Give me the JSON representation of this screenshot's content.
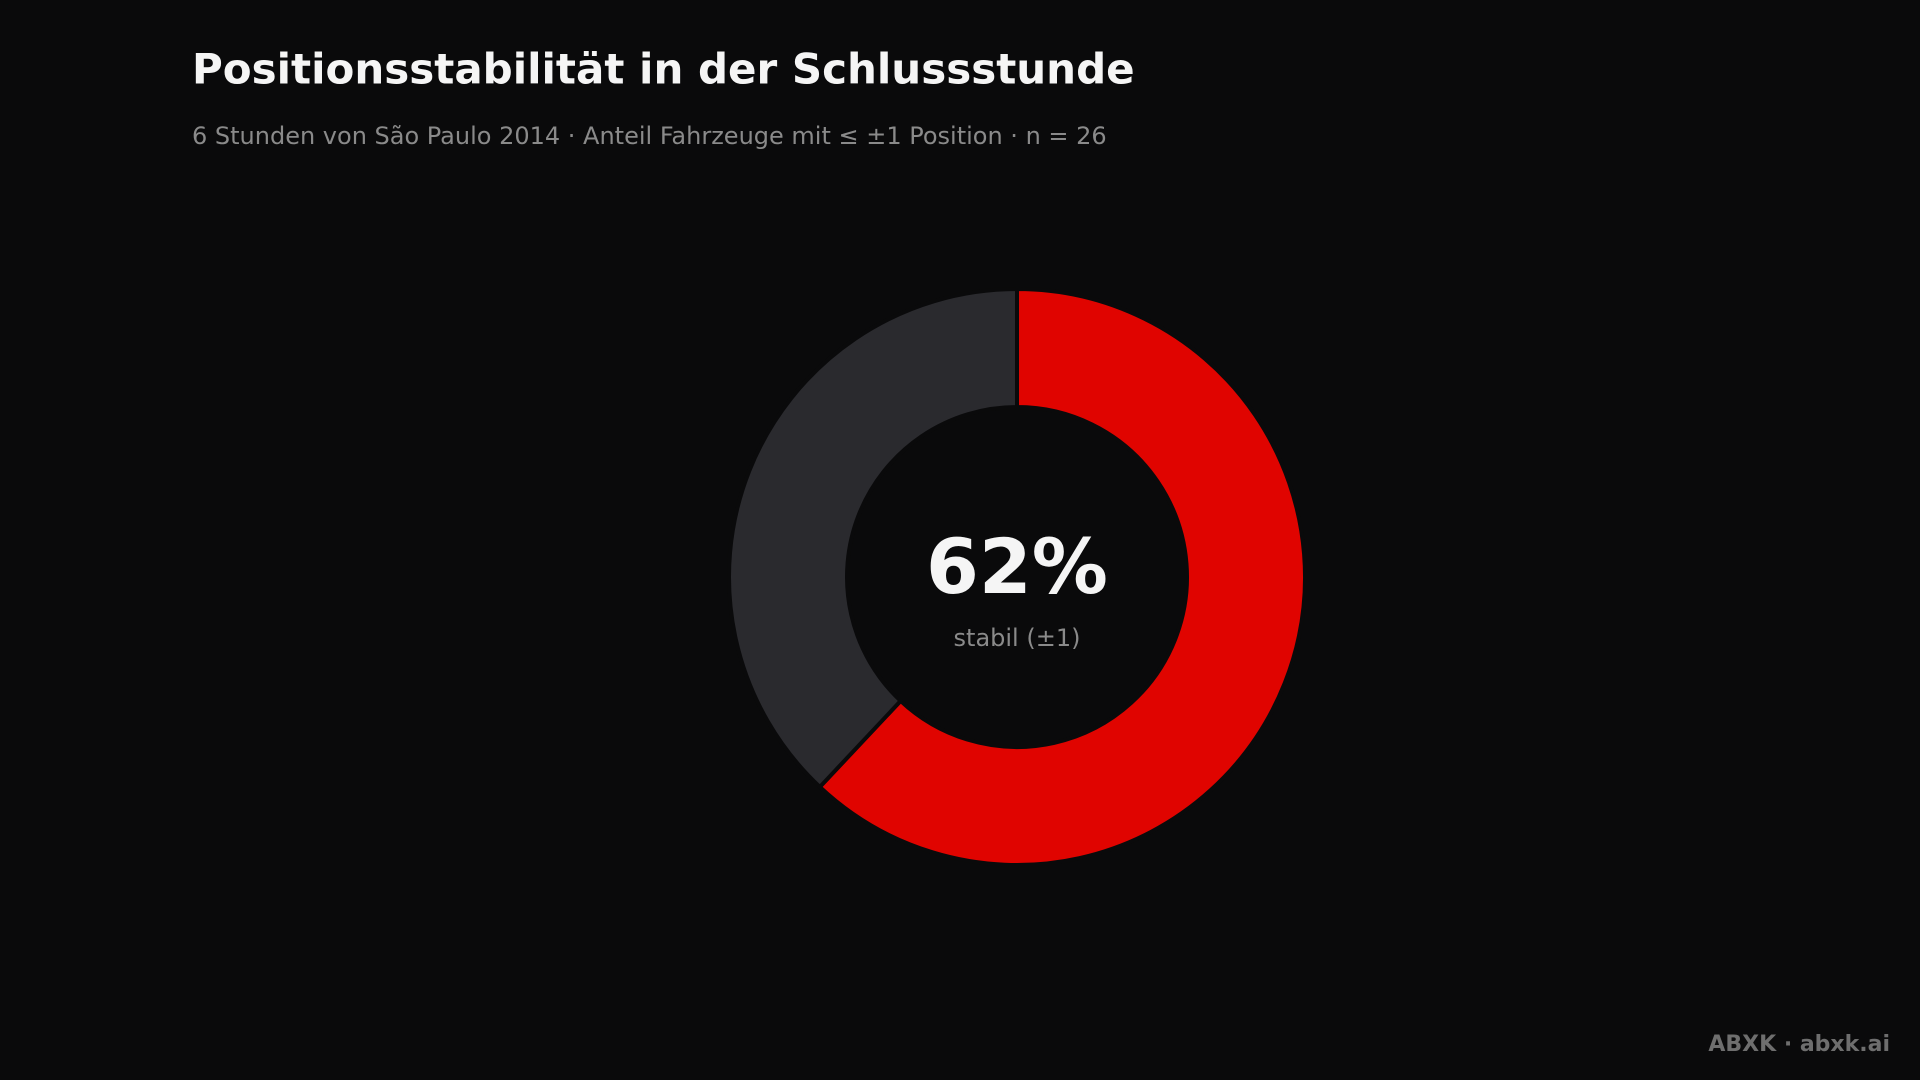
{
  "chart_data": {
    "type": "donut",
    "title": "Positionsstabilität in der Schlussstunde",
    "subtitle": "6 Stunden von São Paulo 2014 · Anteil Fahrzeuge mit ≤ ±1 Position · n = 26",
    "categories": [
      "stabil (±1)",
      null
    ],
    "values": [
      62,
      38
    ],
    "colors": [
      "#e00400",
      "#2a2a2e"
    ],
    "center_text": "62%",
    "footer": "ABXK · abxk.ai"
  }
}
